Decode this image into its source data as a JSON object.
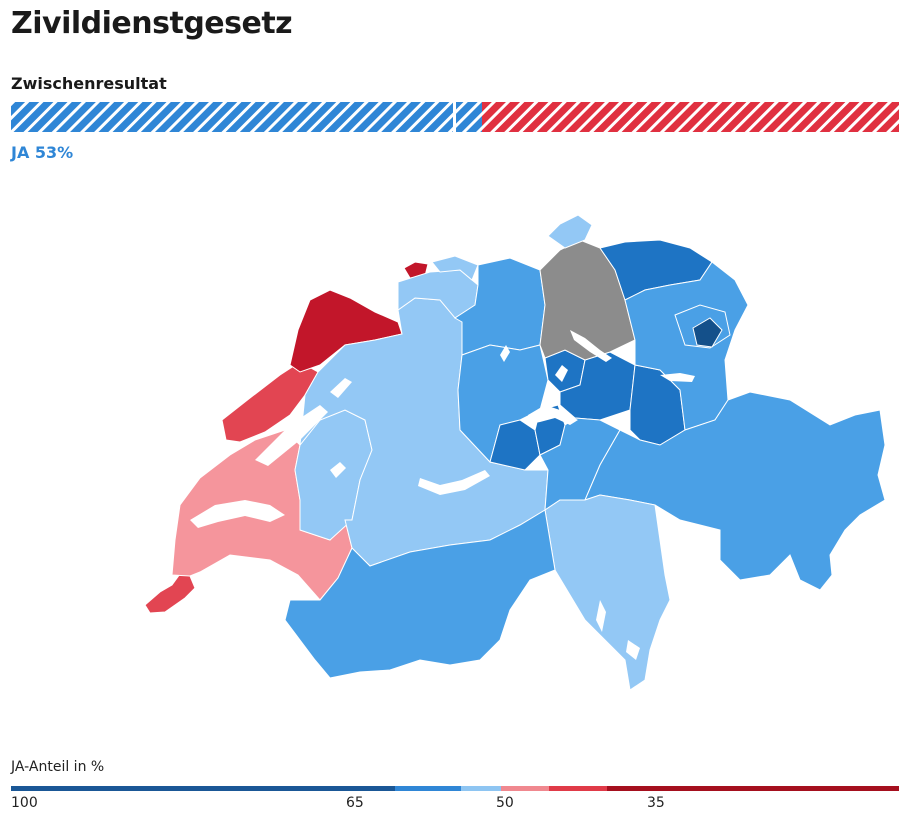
{
  "title": "Zivildienstgesetz",
  "subtitle": "Zwischenresultat",
  "result": {
    "label": "JA 53%",
    "yes_percent": 53,
    "yes_color": "#2f86d6",
    "no_color": "#e03040"
  },
  "legend": {
    "title": "JA-Anteil in %",
    "ticks": [
      "100",
      "65",
      "50",
      "35"
    ],
    "colors": [
      "#1a5796",
      "#2f86d6",
      "#8ec5f2",
      "#f0888f",
      "#e03a48",
      "#a50f1e"
    ]
  },
  "map_colors": {
    "ja_dark": "#14508a",
    "ja_strong": "#1e74c4",
    "ja_mid": "#4aa0e6",
    "ja_light": "#93c8f5",
    "nein_light": "#f5959c",
    "nein_mid": "#e24552",
    "nein_dark": "#c2162a",
    "no_result": "#8c8c8c",
    "lake": "#ffffff"
  }
}
